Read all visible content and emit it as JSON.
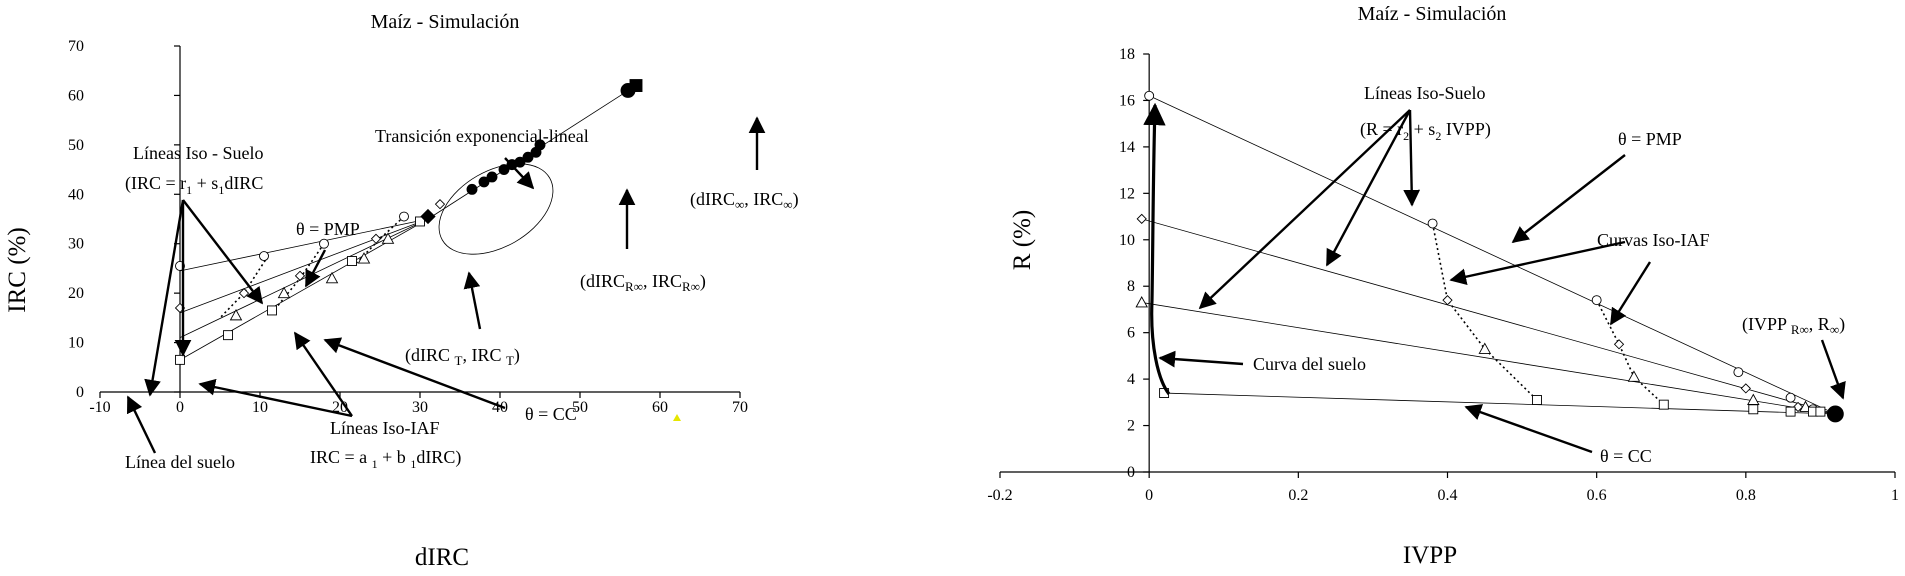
{
  "chart_data": [
    {
      "type": "scatter",
      "title": "Maíz - Simulación",
      "xlabel": "dIRC",
      "ylabel": "IRC (%)",
      "xlim": [
        -10,
        70
      ],
      "ylim": [
        0,
        70
      ],
      "xticks": [
        -10,
        0,
        10,
        20,
        30,
        40,
        50,
        60,
        70
      ],
      "yticks": [
        0,
        10,
        20,
        30,
        40,
        50,
        60,
        70
      ],
      "lines": [
        {
          "kind": "iso-suelo",
          "points": [
            [
              0,
              24.5
            ],
            [
              31,
              35
            ]
          ]
        },
        {
          "kind": "iso-suelo",
          "points": [
            [
              0,
              16
            ],
            [
              31,
              35
            ]
          ]
        },
        {
          "kind": "iso-suelo",
          "points": [
            [
              0,
              11
            ],
            [
              31,
              35
            ]
          ]
        },
        {
          "kind": "iso-suelo",
          "points": [
            [
              0,
              6.5
            ],
            [
              31,
              35
            ]
          ]
        },
        {
          "kind": "linea-suelo",
          "points": [
            [
              0,
              6.5
            ],
            [
              0,
              25
            ]
          ]
        },
        {
          "kind": "continuation",
          "points": [
            [
              31,
              35
            ],
            [
              57,
              62
            ]
          ]
        },
        {
          "kind": "iso-iaf",
          "points": [
            [
              11,
              27.5
            ],
            [
              8,
              20
            ],
            [
              5,
              15
            ]
          ]
        },
        {
          "kind": "iso-iaf",
          "points": [
            [
              18,
              30
            ],
            [
              15,
              23
            ],
            [
              12,
              17
            ]
          ]
        },
        {
          "kind": "iso-iaf",
          "points": [
            [
              28,
              35.5
            ],
            [
              25,
              31
            ],
            [
              22,
              26
            ]
          ]
        }
      ],
      "markers": [
        {
          "shape": "circle-open",
          "points": [
            [
              0,
              25.5
            ],
            [
              10.5,
              27.5
            ],
            [
              18,
              30
            ],
            [
              28,
              35.5
            ]
          ]
        },
        {
          "shape": "diamond-open",
          "points": [
            [
              0,
              17
            ],
            [
              8,
              20
            ],
            [
              15,
              23.5
            ],
            [
              24.5,
              31
            ],
            [
              32.5,
              38
            ]
          ]
        },
        {
          "shape": "triangle-open",
          "points": [
            [
              7,
              15.5
            ],
            [
              13,
              20
            ],
            [
              19,
              23
            ],
            [
              23,
              27
            ],
            [
              26,
              31
            ]
          ]
        },
        {
          "shape": "square-open",
          "points": [
            [
              0,
              6.5
            ],
            [
              6,
              11.5
            ],
            [
              11.5,
              16.5
            ],
            [
              21.5,
              26.5
            ],
            [
              30,
              34.5
            ]
          ]
        },
        {
          "shape": "circle-filled",
          "points": [
            [
              36.5,
              41
            ],
            [
              38,
              42.5
            ],
            [
              39,
              43.5
            ],
            [
              40.5,
              45
            ],
            [
              41.5,
              46
            ],
            [
              42.5,
              46.5
            ],
            [
              43.5,
              47.5
            ],
            [
              44.5,
              48.5
            ],
            [
              45,
              50
            ],
            [
              56,
              61
            ]
          ]
        },
        {
          "shape": "diamond-filled",
          "points": [
            [
              31,
              35.5
            ]
          ]
        },
        {
          "shape": "square-filled",
          "points": [
            [
              57,
              62
            ]
          ]
        }
      ],
      "annotations": [
        "Líneas Iso - Suelo",
        "(IRC = r",
        "1",
        " + s",
        "1",
        "dIRC",
        "θ = PMP",
        "Transición exponencial-lineal",
        "(dIRC",
        "∞",
        ", IRC",
        "∞",
        ")",
        "(dIRC",
        "R∞",
        ", IRC",
        "R∞",
        ")",
        "(dIRC ",
        "T",
        ", IRC ",
        "T",
        ")",
        "θ = CC",
        "Líneas Iso-IAF",
        "IRC = a ",
        "1",
        " + b ",
        "1",
        "dIRC)",
        "Línea del suelo"
      ]
    },
    {
      "type": "scatter",
      "title": "Maíz - Simulación",
      "xlabel": "IVPP",
      "ylabel": "R (%)",
      "xlim": [
        -0.2,
        1
      ],
      "ylim": [
        0,
        18
      ],
      "xticks": [
        "-0.2",
        "0",
        "0.2",
        "0.4",
        "0.6",
        "0.8",
        "1"
      ],
      "yticks": [
        "0",
        "2",
        "4",
        "6",
        "8",
        "10",
        "12",
        "14",
        "16",
        "18"
      ],
      "lines": [
        {
          "kind": "iso-suelo",
          "points": [
            [
              0,
              16.2
            ],
            [
              0.92,
              2.5
            ]
          ]
        },
        {
          "kind": "iso-suelo",
          "points": [
            [
              -0.01,
              10.9
            ],
            [
              0.92,
              2.5
            ]
          ]
        },
        {
          "kind": "iso-suelo",
          "points": [
            [
              -0.01,
              7.3
            ],
            [
              0.92,
              2.5
            ]
          ]
        },
        {
          "kind": "iso-suelo",
          "points": [
            [
              0.02,
              3.4
            ],
            [
              0.92,
              2.5
            ]
          ]
        },
        {
          "kind": "iso-iaf",
          "points": [
            [
              0.38,
              10.7
            ],
            [
              0.4,
              7.4
            ],
            [
              0.45,
              5.3
            ],
            [
              0.52,
              3.1
            ]
          ]
        },
        {
          "kind": "iso-iaf",
          "points": [
            [
              0.6,
              7.4
            ],
            [
              0.63,
              5.5
            ],
            [
              0.65,
              4.1
            ],
            [
              0.69,
              2.9
            ]
          ]
        }
      ],
      "markers": [
        {
          "shape": "circle-open",
          "points": [
            [
              0,
              16.2
            ],
            [
              0.38,
              10.7
            ],
            [
              0.6,
              7.4
            ],
            [
              0.79,
              4.3
            ],
            [
              0.86,
              3.2
            ],
            [
              0.89,
              2.7
            ]
          ]
        },
        {
          "shape": "diamond-open",
          "points": [
            [
              -0.01,
              10.9
            ],
            [
              0.4,
              7.4
            ],
            [
              0.63,
              5.5
            ],
            [
              0.8,
              3.6
            ],
            [
              0.87,
              2.8
            ]
          ]
        },
        {
          "shape": "triangle-open",
          "points": [
            [
              -0.01,
              7.3
            ],
            [
              0.45,
              5.3
            ],
            [
              0.65,
              4.1
            ],
            [
              0.81,
              3.1
            ],
            [
              0.88,
              2.8
            ]
          ]
        },
        {
          "shape": "square-open",
          "points": [
            [
              0.02,
              3.4
            ],
            [
              0.52,
              3.1
            ],
            [
              0.69,
              2.9
            ],
            [
              0.81,
              2.7
            ],
            [
              0.86,
              2.6
            ],
            [
              0.89,
              2.6
            ],
            [
              0.9,
              2.6
            ]
          ]
        },
        {
          "shape": "circle-filled",
          "points": [
            [
              0.92,
              2.5
            ]
          ]
        }
      ],
      "annotations": [
        "Líneas Iso-Suelo",
        "(R = r",
        "2",
        " + s",
        "2",
        " IVPP)",
        "θ = PMP",
        "Curvas Iso-IAF",
        "(IVPP ",
        "R∞",
        ", R",
        "∞",
        ")",
        "Curva del suelo",
        "θ = CC"
      ]
    }
  ]
}
